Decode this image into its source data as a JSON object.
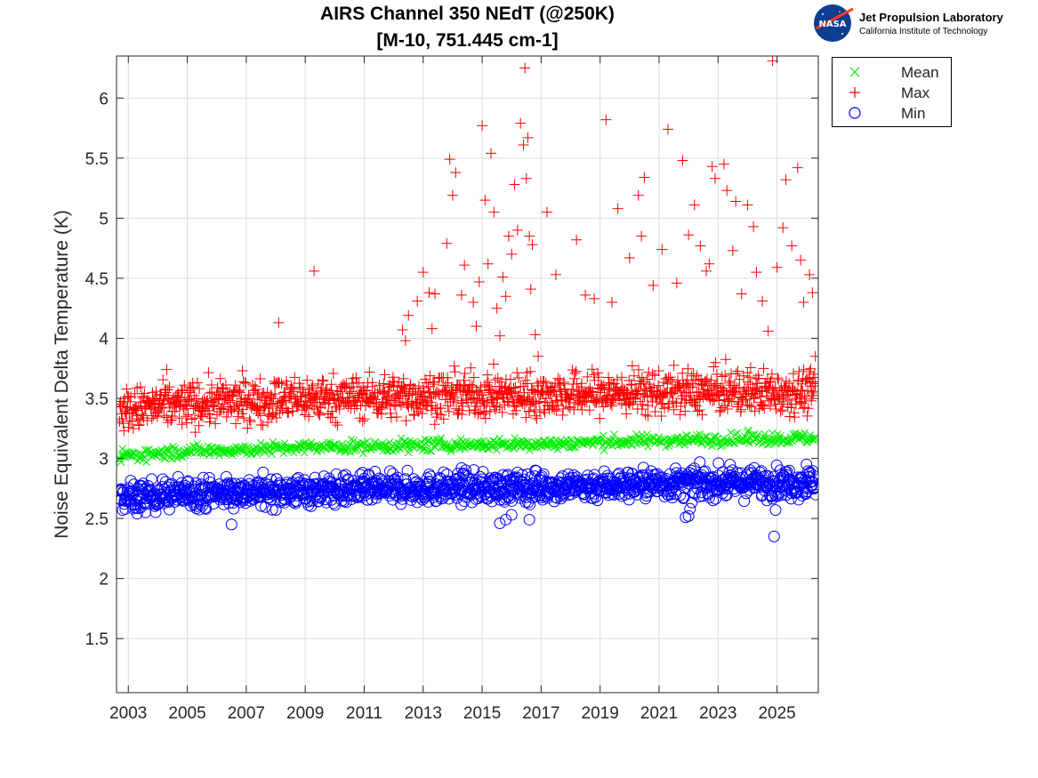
{
  "header": {
    "title_line1": "AIRS Channel 350 NEdT (@250K)",
    "title_line2": "[M-10, 751.445 cm-1]"
  },
  "logo": {
    "emblem_text": "NASA",
    "org_name": "Jet Propulsion Laboratory",
    "org_sub": "California Institute of Technology"
  },
  "legend": [
    {
      "label": "Mean",
      "color": "#00ee00",
      "marker": "x"
    },
    {
      "label": "Max",
      "color": "#ff0000",
      "marker": "+"
    },
    {
      "label": "Min",
      "color": "#0000ff",
      "marker": "o"
    }
  ],
  "chart_data": {
    "type": "scatter",
    "title": "AIRS Channel 350 NEdT (@250K) [M-10, 751.445 cm-1]",
    "xlabel": "",
    "ylabel": "Noise Equivalent Delta Temperature (K)",
    "xlim": [
      2002.6,
      2026.4
    ],
    "ylim": [
      1.05,
      6.35
    ],
    "xticks": [
      "2003",
      "2005",
      "2007",
      "2009",
      "2011",
      "2013",
      "2015",
      "2017",
      "2019",
      "2021",
      "2023",
      "2025"
    ],
    "xtick_values": [
      2003,
      2005,
      2007,
      2009,
      2011,
      2013,
      2015,
      2017,
      2019,
      2021,
      2023,
      2025
    ],
    "yticks": [
      "1.5",
      "2",
      "2.5",
      "3",
      "3.5",
      "4",
      "4.5",
      "5",
      "5.5",
      "6"
    ],
    "ytick_values": [
      1.5,
      2,
      2.5,
      3,
      3.5,
      4,
      4.5,
      5,
      5.5,
      6
    ],
    "grid": true,
    "legend_position": "outside-top-right",
    "series": [
      {
        "name": "Mean",
        "color": "#00ee00",
        "marker": "x",
        "trend": [
          [
            2002.7,
            3.02
          ],
          [
            2005,
            3.06
          ],
          [
            2009,
            3.09
          ],
          [
            2013,
            3.11
          ],
          [
            2017,
            3.12
          ],
          [
            2021,
            3.15
          ],
          [
            2026.3,
            3.17
          ]
        ],
        "spread": 0.025,
        "outliers": [
          [
            2002.75,
            2.97
          ],
          [
            2002.8,
            3.08
          ],
          [
            2012.5,
            3.05
          ],
          [
            2024.0,
            3.22
          ]
        ]
      },
      {
        "name": "Max",
        "color": "#ff0000",
        "marker": "+",
        "trend": [
          [
            2002.7,
            3.4
          ],
          [
            2005,
            3.45
          ],
          [
            2009,
            3.5
          ],
          [
            2013,
            3.52
          ],
          [
            2017,
            3.53
          ],
          [
            2021,
            3.55
          ],
          [
            2026.3,
            3.56
          ]
        ],
        "spread": 0.09,
        "outliers": [
          [
            2004.3,
            3.74
          ],
          [
            2008.1,
            4.13
          ],
          [
            2009.3,
            4.56
          ],
          [
            2012.3,
            4.07
          ],
          [
            2012.4,
            3.98
          ],
          [
            2012.5,
            4.19
          ],
          [
            2012.8,
            4.31
          ],
          [
            2013.0,
            4.55
          ],
          [
            2013.2,
            4.38
          ],
          [
            2013.4,
            4.37
          ],
          [
            2013.3,
            4.08
          ],
          [
            2013.8,
            4.79
          ],
          [
            2013.9,
            5.49
          ],
          [
            2014.0,
            5.19
          ],
          [
            2014.1,
            5.38
          ],
          [
            2014.3,
            4.36
          ],
          [
            2014.4,
            4.61
          ],
          [
            2014.7,
            4.3
          ],
          [
            2014.8,
            4.1
          ],
          [
            2014.9,
            4.47
          ],
          [
            2015.0,
            5.77
          ],
          [
            2015.1,
            5.15
          ],
          [
            2015.2,
            4.62
          ],
          [
            2015.3,
            5.54
          ],
          [
            2015.4,
            5.05
          ],
          [
            2015.5,
            4.25
          ],
          [
            2015.6,
            4.02
          ],
          [
            2015.7,
            4.51
          ],
          [
            2015.8,
            4.35
          ],
          [
            2015.9,
            4.85
          ],
          [
            2016.0,
            4.7
          ],
          [
            2016.1,
            5.28
          ],
          [
            2016.2,
            4.9
          ],
          [
            2016.3,
            5.79
          ],
          [
            2016.4,
            5.61
          ],
          [
            2016.45,
            6.25
          ],
          [
            2016.5,
            5.33
          ],
          [
            2016.55,
            5.67
          ],
          [
            2016.6,
            4.85
          ],
          [
            2016.65,
            4.41
          ],
          [
            2016.7,
            4.78
          ],
          [
            2016.8,
            4.03
          ],
          [
            2016.9,
            3.85
          ],
          [
            2017.2,
            5.05
          ],
          [
            2017.5,
            4.53
          ],
          [
            2018.2,
            4.82
          ],
          [
            2018.5,
            4.36
          ],
          [
            2018.8,
            4.33
          ],
          [
            2019.2,
            5.82
          ],
          [
            2019.4,
            4.3
          ],
          [
            2019.6,
            5.08
          ],
          [
            2020.0,
            4.67
          ],
          [
            2020.3,
            5.19
          ],
          [
            2020.4,
            4.85
          ],
          [
            2020.5,
            5.34
          ],
          [
            2020.8,
            4.44
          ],
          [
            2021.1,
            4.74
          ],
          [
            2021.3,
            5.74
          ],
          [
            2021.6,
            4.46
          ],
          [
            2021.8,
            5.48
          ],
          [
            2022.0,
            4.86
          ],
          [
            2022.2,
            5.11
          ],
          [
            2022.4,
            4.77
          ],
          [
            2022.6,
            4.56
          ],
          [
            2022.7,
            4.62
          ],
          [
            2022.8,
            5.43
          ],
          [
            2022.9,
            5.33
          ],
          [
            2023.2,
            5.45
          ],
          [
            2023.3,
            5.23
          ],
          [
            2023.5,
            4.73
          ],
          [
            2023.6,
            5.14
          ],
          [
            2023.8,
            4.37
          ],
          [
            2024.0,
            5.11
          ],
          [
            2024.2,
            4.93
          ],
          [
            2024.3,
            4.55
          ],
          [
            2024.5,
            4.31
          ],
          [
            2024.7,
            4.06
          ],
          [
            2024.85,
            6.31
          ],
          [
            2025.0,
            4.59
          ],
          [
            2025.2,
            4.92
          ],
          [
            2025.3,
            5.32
          ],
          [
            2025.5,
            4.77
          ],
          [
            2025.7,
            5.42
          ],
          [
            2025.8,
            4.65
          ],
          [
            2025.9,
            4.3
          ],
          [
            2026.1,
            4.53
          ],
          [
            2026.2,
            4.38
          ],
          [
            2026.3,
            3.85
          ]
        ]
      },
      {
        "name": "Min",
        "color": "#0000ff",
        "marker": "o",
        "trend": [
          [
            2002.7,
            2.67
          ],
          [
            2005,
            2.71
          ],
          [
            2009,
            2.73
          ],
          [
            2013,
            2.75
          ],
          [
            2017,
            2.76
          ],
          [
            2021,
            2.79
          ],
          [
            2026.3,
            2.8
          ]
        ],
        "spread": 0.06,
        "outliers": [
          [
            2003.3,
            2.54
          ],
          [
            2006.5,
            2.45
          ],
          [
            2014.3,
            2.92
          ],
          [
            2015.6,
            2.46
          ],
          [
            2015.8,
            2.49
          ],
          [
            2016.0,
            2.53
          ],
          [
            2016.6,
            2.49
          ],
          [
            2016.8,
            2.9
          ],
          [
            2021.9,
            2.51
          ],
          [
            2022.0,
            2.52
          ],
          [
            2022.05,
            2.58
          ],
          [
            2024.9,
            2.35
          ],
          [
            2024.95,
            2.57
          ],
          [
            2026.0,
            2.95
          ]
        ]
      }
    ]
  }
}
